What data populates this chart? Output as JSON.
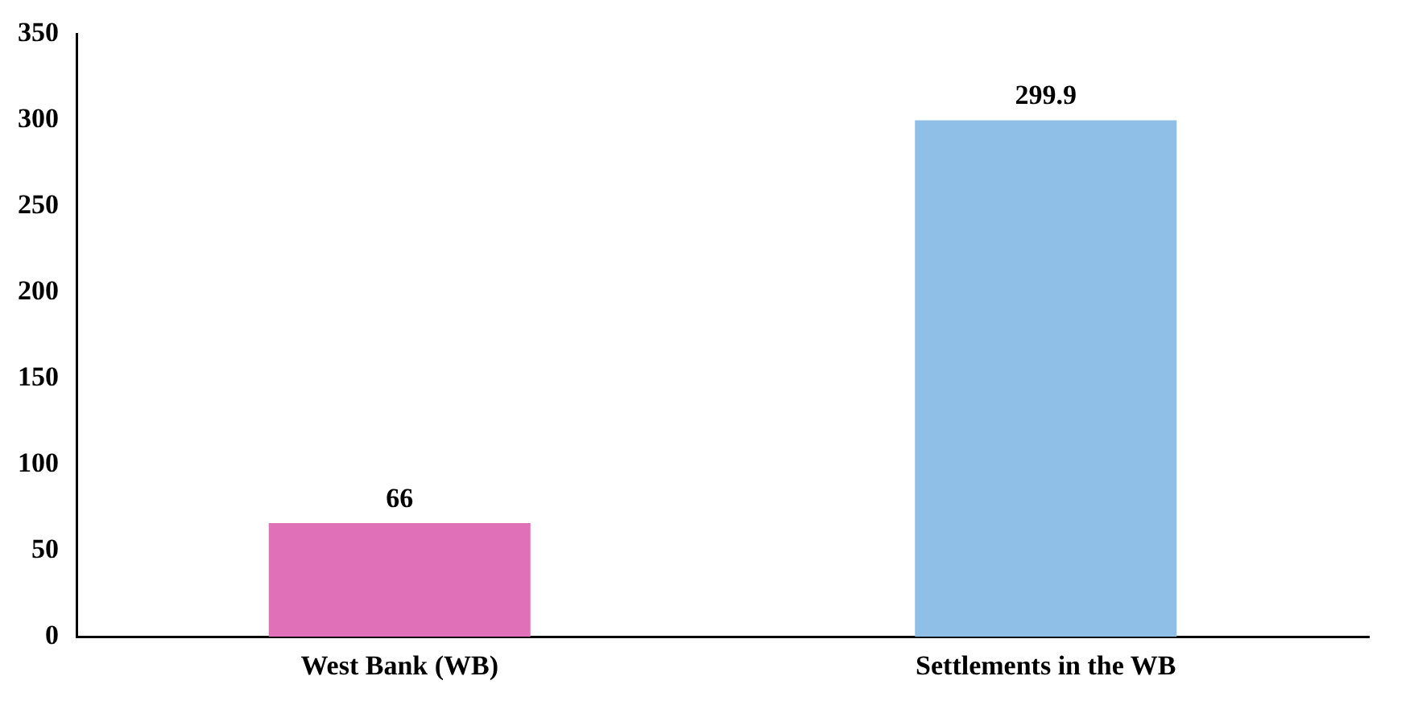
{
  "chart_data": {
    "type": "bar",
    "categories": [
      "West Bank (WB)",
      "Settlements in the WB"
    ],
    "values": [
      66,
      299.9
    ],
    "colors": [
      "#e070b8",
      "#8fbfe6"
    ],
    "ylim": [
      0,
      350
    ],
    "yticks": [
      0,
      50,
      100,
      150,
      200,
      250,
      300,
      350
    ],
    "grid": false,
    "legend": false,
    "data_labels": true
  }
}
